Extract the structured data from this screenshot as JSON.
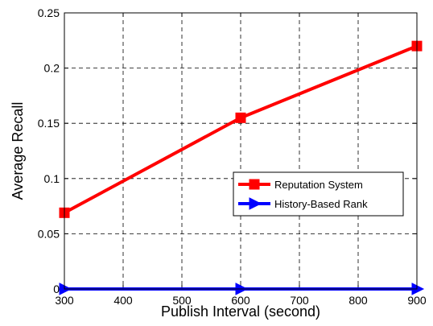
{
  "chart_data": {
    "type": "line",
    "title": "",
    "xlabel": "Publish Interval  (second)",
    "ylabel": "Average Recall",
    "x": [
      300,
      600,
      900
    ],
    "xlim": [
      300,
      900
    ],
    "ylim": [
      0,
      0.25
    ],
    "xticks": [
      "300",
      "400",
      "500",
      "600",
      "700",
      "800",
      "900"
    ],
    "yticks": [
      "0",
      "0.05",
      "0.1",
      "0.15",
      "0.2",
      "0.25"
    ],
    "grid": true,
    "legend_position": "center-right",
    "series": [
      {
        "name": "Reputation System",
        "values": [
          0.069,
          0.155,
          0.22
        ],
        "color": "#ff0000",
        "marker": "square"
      },
      {
        "name": "History-Based Rank",
        "values": [
          0,
          0,
          0
        ],
        "color": "#0000ff",
        "marker": "triangle-right"
      }
    ]
  }
}
